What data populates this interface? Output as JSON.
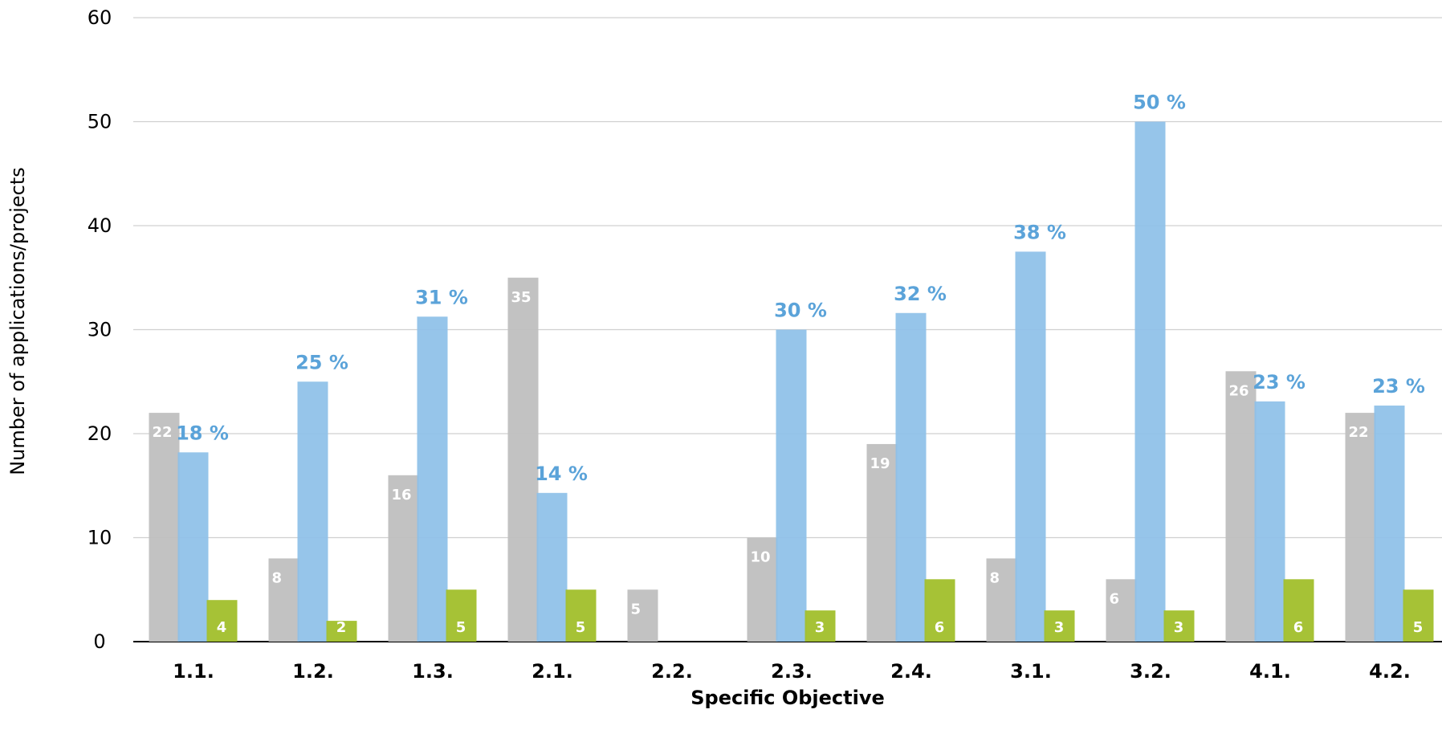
{
  "chart_data": {
    "type": "bar",
    "title": "",
    "xlabel": "Specific Objective",
    "ylabel": "Number of applications/projects",
    "ylim": [
      0,
      60
    ],
    "yticks": [
      "0",
      "10",
      "20",
      "30",
      "40",
      "50",
      "60"
    ],
    "grid": true,
    "categories": [
      "1.1.",
      "1.2.",
      "1.3.",
      "2.1.",
      "2.2.",
      "2.3.",
      "2.4.",
      "3.1.",
      "3.2.",
      "4.1.",
      "4.2."
    ],
    "series": [
      {
        "color": "#bfbfbf",
        "values": [
          22,
          8,
          16,
          35,
          5,
          10,
          19,
          8,
          6,
          26,
          22
        ],
        "labels": [
          "22",
          "8",
          "16",
          "35",
          "5",
          "10",
          "19",
          "8",
          "6",
          "26",
          "22"
        ]
      },
      {
        "color": "#8dc0e8",
        "values": [
          18.2,
          25,
          31.25,
          14.3,
          0,
          30,
          31.6,
          37.5,
          50,
          23.1,
          22.7
        ],
        "labels": [
          "18 %",
          "25 %",
          "31 %",
          "14 %",
          "",
          "30 %",
          "32 %",
          "38 %",
          "50 %",
          "23 %",
          "23 %"
        ],
        "label_color": "#5ba3d9"
      },
      {
        "color": "#a2bf2e",
        "values": [
          4,
          2,
          5,
          5,
          0,
          3,
          6,
          3,
          3,
          6,
          5
        ],
        "labels": [
          "4",
          "2",
          "5",
          "5",
          "",
          "3",
          "6",
          "3",
          "3",
          "6",
          "5"
        ]
      }
    ],
    "grid_color": "#d0d0d0",
    "axis_color": "#000000"
  }
}
